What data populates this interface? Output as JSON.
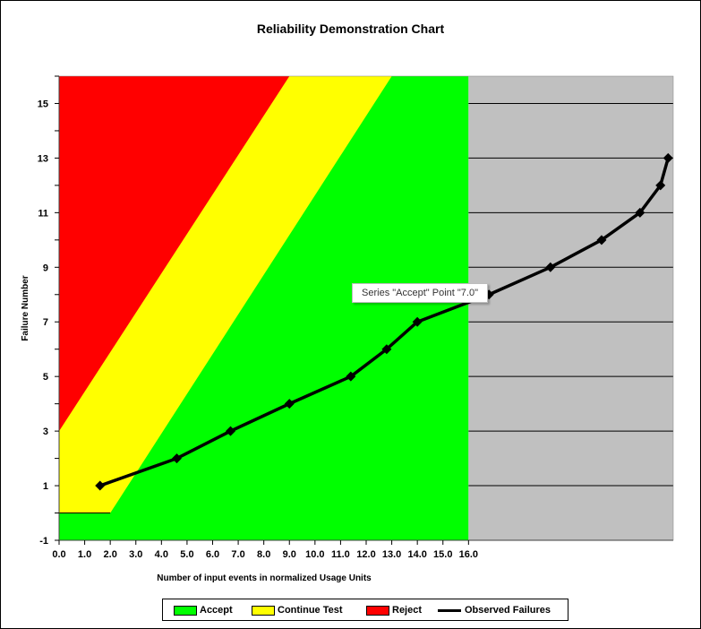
{
  "chart_data": {
    "type": "line",
    "title": "Reliability Demonstration Chart",
    "xlabel": "Number of input events in normalized Usage Units",
    "ylabel": "Failure Number",
    "xlim": [
      0,
      24
    ],
    "ylim": [
      -1,
      16
    ],
    "x_ticks": [
      "0.0",
      "1.0",
      "2.0",
      "3.0",
      "4.0",
      "5.0",
      "6.0",
      "7.0",
      "8.0",
      "9.0",
      "10.0",
      "11.0",
      "12.0",
      "13.0",
      "14.0",
      "15.0",
      "16.0"
    ],
    "y_ticks": [
      "-1",
      "1",
      "3",
      "5",
      "7",
      "9",
      "11",
      "13",
      "15"
    ],
    "grid": false,
    "regions": {
      "accept_end_x": 16.0,
      "continue_lower_boundary": [
        [
          0,
          0
        ],
        [
          2.0,
          0
        ],
        [
          13.0,
          16
        ]
      ],
      "reject_lower_boundary": [
        [
          0,
          3
        ],
        [
          9.0,
          16
        ]
      ]
    },
    "colors": {
      "accept": "#00ff00",
      "continue": "#ffff00",
      "reject": "#ff0000",
      "beyond": "#c0c0c0",
      "line": "#000000"
    },
    "series": [
      {
        "name": "Observed Failures",
        "x": [
          1.6,
          4.6,
          6.7,
          9.0,
          11.4,
          12.8,
          14.0,
          16.8,
          19.2,
          21.2,
          22.7,
          23.5,
          23.8
        ],
        "y": [
          1,
          2,
          3,
          4,
          5,
          6,
          7,
          8,
          9,
          10,
          11,
          12,
          13
        ]
      }
    ],
    "legend": {
      "placement": "bottom",
      "entries": [
        "Accept",
        "Continue Test",
        "Reject",
        "Observed Failures"
      ]
    },
    "tooltip": "Series \"Accept\" Point \"7.0\""
  }
}
